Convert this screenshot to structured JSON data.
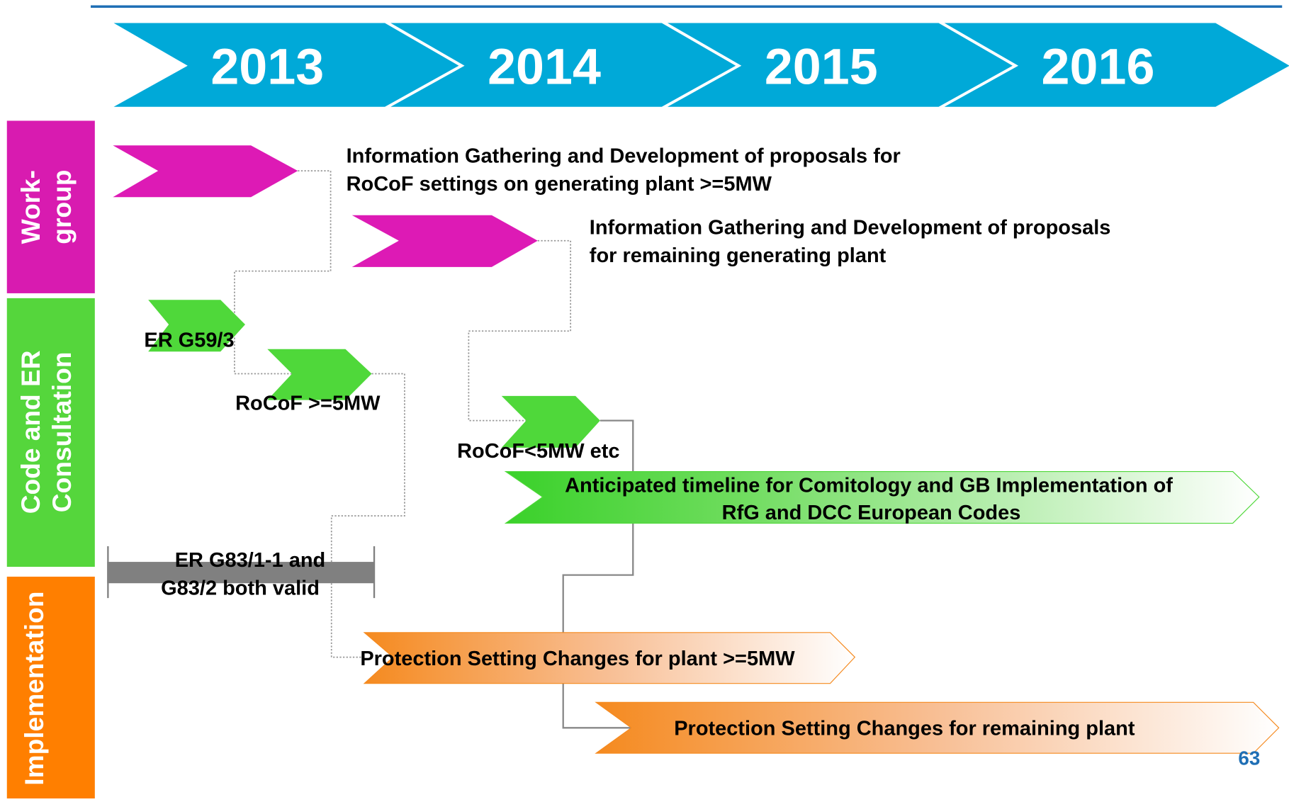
{
  "years": [
    "2013",
    "2014",
    "2015",
    "2016"
  ],
  "lanes": [
    "Work-",
    "group",
    "Code and ER",
    "Consultation",
    "Implementation"
  ],
  "tasks": [
    {
      "lines": [
        "Information Gathering and Development of proposals for",
        "RoCoF settings on generating plant >=5MW"
      ]
    },
    {
      "lines": [
        "Information Gathering and Development of proposals",
        "for remaining generating plant"
      ]
    },
    {
      "lines": [
        "ER G59/3"
      ]
    },
    {
      "lines": [
        "RoCoF >=5MW"
      ]
    },
    {
      "lines": [
        "RoCoF<5MW etc"
      ]
    },
    {
      "lines": [
        "Anticipated timeline for Comitology and GB Implementation of",
        "RfG and DCC European Codes"
      ]
    },
    {
      "lines": [
        "ER G83/1-1 and",
        "G83/2 both valid"
      ]
    },
    {
      "lines": [
        "Protection Setting Changes for plant >=5MW"
      ]
    },
    {
      "lines": [
        "Protection Setting Changes for remaining plant"
      ]
    }
  ],
  "page_number": "63"
}
